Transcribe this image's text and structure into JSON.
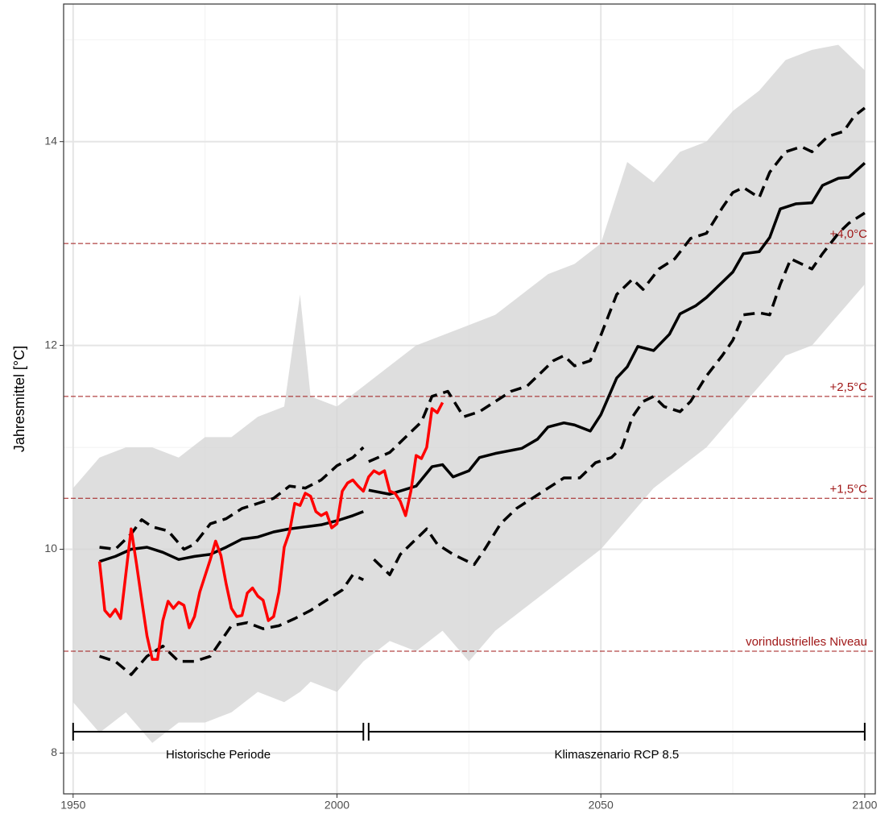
{
  "chart_data": {
    "type": "line",
    "y_label": "Jahresmittel [°C]",
    "xlim": [
      1948.2,
      2102
    ],
    "ylim": [
      7.6,
      15.35
    ],
    "xticks": [
      1950,
      2000,
      2050,
      2100
    ],
    "yticks": [
      8,
      10,
      12,
      14
    ],
    "xminor": [
      1975,
      2025,
      2075
    ],
    "yminor": [
      9,
      11,
      13,
      15
    ],
    "grid": true,
    "band": {
      "color": "#d3d3d3",
      "x": [
        1950,
        1955,
        1960,
        1965,
        1970,
        1975,
        1980,
        1985,
        1990,
        1993,
        1995,
        2000,
        2005,
        2010,
        2015,
        2020,
        2025,
        2030,
        2035,
        2040,
        2045,
        2050,
        2055,
        2060,
        2065,
        2070,
        2075,
        2080,
        2085,
        2090,
        2095,
        2100
      ],
      "upper": [
        10.6,
        10.9,
        11.0,
        11.0,
        10.9,
        11.1,
        11.1,
        11.3,
        11.4,
        12.5,
        11.5,
        11.4,
        11.6,
        11.8,
        12.0,
        12.1,
        12.2,
        12.3,
        12.5,
        12.7,
        12.8,
        13.0,
        13.8,
        13.6,
        13.9,
        14.0,
        14.3,
        14.5,
        14.8,
        14.9,
        14.95,
        14.7
      ],
      "lower": [
        8.5,
        8.2,
        8.4,
        8.1,
        8.3,
        8.3,
        8.4,
        8.6,
        8.5,
        8.6,
        8.7,
        8.6,
        8.9,
        9.1,
        9.0,
        9.2,
        8.9,
        9.2,
        9.4,
        9.6,
        9.8,
        10.0,
        10.3,
        10.6,
        10.8,
        11.0,
        11.3,
        11.6,
        11.9,
        12.0,
        12.3,
        12.6
      ]
    },
    "series": [
      {
        "color": "#000000",
        "linestyle": "dashed",
        "x": [
          1955,
          1958,
          1961,
          1963,
          1965,
          1968,
          1971,
          1973,
          1976,
          1979,
          1982,
          1985,
          1988,
          1991,
          1994,
          1997,
          2000,
          2003,
          2005
        ],
        "values": [
          10.02,
          10.0,
          10.15,
          10.29,
          10.22,
          10.18,
          10.0,
          10.05,
          10.25,
          10.3,
          10.4,
          10.45,
          10.5,
          10.62,
          10.6,
          10.68,
          10.82,
          10.9,
          11.0
        ]
      },
      {
        "color": "#000000",
        "linestyle": "dashed",
        "x": [
          1955,
          1958,
          1961,
          1964,
          1967,
          1970,
          1973,
          1976,
          1978,
          1980,
          1983,
          1986,
          1989,
          1992,
          1995,
          1998,
          2001,
          2003,
          2005
        ],
        "values": [
          8.95,
          8.9,
          8.77,
          8.95,
          9.05,
          8.9,
          8.9,
          8.95,
          9.1,
          9.25,
          9.28,
          9.22,
          9.25,
          9.32,
          9.4,
          9.5,
          9.6,
          9.75,
          9.7
        ]
      },
      {
        "color": "#000000",
        "linestyle": "dashed",
        "x": [
          2006,
          2010,
          2013,
          2016,
          2018,
          2021,
          2024,
          2027,
          2030,
          2033,
          2036,
          2039,
          2041,
          2043,
          2045,
          2048,
          2050,
          2053,
          2056,
          2058,
          2061,
          2064,
          2067,
          2070,
          2073,
          2075,
          2077,
          2080,
          2082,
          2085,
          2088,
          2090,
          2093,
          2096,
          2098,
          2100
        ],
        "values": [
          10.86,
          10.95,
          11.1,
          11.25,
          11.5,
          11.55,
          11.3,
          11.35,
          11.45,
          11.55,
          11.6,
          11.75,
          11.85,
          11.9,
          11.8,
          11.85,
          12.1,
          12.5,
          12.65,
          12.55,
          12.75,
          12.85,
          13.05,
          13.1,
          13.35,
          13.5,
          13.55,
          13.45,
          13.7,
          13.9,
          13.95,
          13.9,
          14.05,
          14.1,
          14.25,
          14.33
        ]
      },
      {
        "color": "#000000",
        "linestyle": "dashed",
        "x": [
          2007,
          2010,
          2012,
          2015,
          2017,
          2019,
          2022,
          2024,
          2026,
          2028,
          2031,
          2034,
          2037,
          2040,
          2043,
          2046,
          2049,
          2052,
          2054,
          2056,
          2058,
          2060,
          2062,
          2065,
          2067,
          2070,
          2073,
          2075,
          2077,
          2080,
          2082,
          2084,
          2086,
          2088,
          2090,
          2092,
          2095,
          2097,
          2100
        ],
        "values": [
          9.9,
          9.75,
          9.95,
          10.1,
          10.2,
          10.05,
          9.95,
          9.9,
          9.85,
          10.0,
          10.25,
          10.4,
          10.5,
          10.6,
          10.7,
          10.7,
          10.85,
          10.9,
          11.0,
          11.3,
          11.45,
          11.5,
          11.4,
          11.35,
          11.45,
          11.7,
          11.9,
          12.05,
          12.3,
          12.32,
          12.3,
          12.6,
          12.85,
          12.8,
          12.75,
          12.9,
          13.1,
          13.2,
          13.3
        ]
      },
      {
        "color": "#000000",
        "linestyle": "solid",
        "x": [
          1955,
          1958,
          1961,
          1964,
          1967,
          1970,
          1973,
          1976,
          1979,
          1982,
          1985,
          1988,
          1991,
          1994,
          1997,
          2000,
          2003,
          2005
        ],
        "values": [
          9.88,
          9.93,
          10.0,
          10.02,
          9.97,
          9.9,
          9.93,
          9.95,
          10.02,
          10.1,
          10.12,
          10.17,
          10.2,
          10.22,
          10.24,
          10.28,
          10.33,
          10.37
        ]
      },
      {
        "color": "#000000",
        "linestyle": "solid",
        "x": [
          2006,
          2010,
          2015,
          2018,
          2020,
          2022,
          2025,
          2027,
          2030,
          2035,
          2038,
          2040,
          2043,
          2045,
          2048,
          2050,
          2053,
          2055,
          2057,
          2060,
          2063,
          2065,
          2068,
          2070,
          2073,
          2075,
          2077,
          2080,
          2082,
          2084,
          2087,
          2090,
          2092,
          2095,
          2097,
          2100
        ],
        "values": [
          10.58,
          10.54,
          10.62,
          10.81,
          10.83,
          10.71,
          10.77,
          10.9,
          10.94,
          10.99,
          11.08,
          11.2,
          11.24,
          11.22,
          11.16,
          11.32,
          11.68,
          11.79,
          11.99,
          11.95,
          12.11,
          12.31,
          12.39,
          12.47,
          12.62,
          12.72,
          12.9,
          12.92,
          13.06,
          13.34,
          13.39,
          13.4,
          13.57,
          13.64,
          13.65,
          13.79
        ]
      },
      {
        "color": "#ff0000",
        "linestyle": "solid",
        "x": [
          1955,
          1956,
          1957,
          1958,
          1959,
          1961,
          1962,
          1963,
          1964,
          1965,
          1966,
          1967,
          1968,
          1969,
          1970,
          1971,
          1972,
          1973,
          1974,
          1975,
          1976,
          1977,
          1978,
          1979,
          1980,
          1981,
          1982,
          1983,
          1984,
          1985,
          1986,
          1987,
          1988,
          1989,
          1990,
          1991,
          1992,
          1993,
          1994,
          1995,
          1996,
          1997,
          1998,
          1999,
          2000,
          2001,
          2002,
          2003,
          2004,
          2005,
          2006,
          2007,
          2008,
          2009,
          2010,
          2011,
          2012,
          2013,
          2014,
          2015,
          2016,
          2017,
          2018,
          2019,
          2020
        ],
        "values": [
          9.88,
          9.4,
          9.34,
          9.41,
          9.32,
          10.2,
          9.86,
          9.5,
          9.15,
          8.92,
          8.92,
          9.3,
          9.49,
          9.42,
          9.48,
          9.45,
          9.23,
          9.34,
          9.58,
          9.74,
          9.9,
          10.08,
          9.94,
          9.66,
          9.42,
          9.34,
          9.35,
          9.57,
          9.62,
          9.54,
          9.5,
          9.3,
          9.34,
          9.58,
          10.02,
          10.17,
          10.45,
          10.43,
          10.55,
          10.52,
          10.37,
          10.33,
          10.36,
          10.21,
          10.25,
          10.57,
          10.65,
          10.68,
          10.62,
          10.57,
          10.71,
          10.77,
          10.74,
          10.77,
          10.57,
          10.55,
          10.47,
          10.33,
          10.57,
          10.92,
          10.89,
          11.0,
          11.38,
          11.34,
          11.44
        ]
      }
    ],
    "hlines": [
      {
        "value": 13.0,
        "label": "+4,0°C"
      },
      {
        "value": 11.5,
        "label": "+2,5°C"
      },
      {
        "value": 10.5,
        "label": "+1,5°C"
      },
      {
        "value": 9.0,
        "label": "vorindustrielles Niveau"
      }
    ],
    "hline_color": "#a01818",
    "period_y": 8.21,
    "periods": [
      {
        "label": "Historische Periode",
        "start": 1950,
        "end": 2005
      },
      {
        "label": "Klimaszenario RCP 8.5",
        "start": 2006,
        "end": 2100
      }
    ]
  }
}
